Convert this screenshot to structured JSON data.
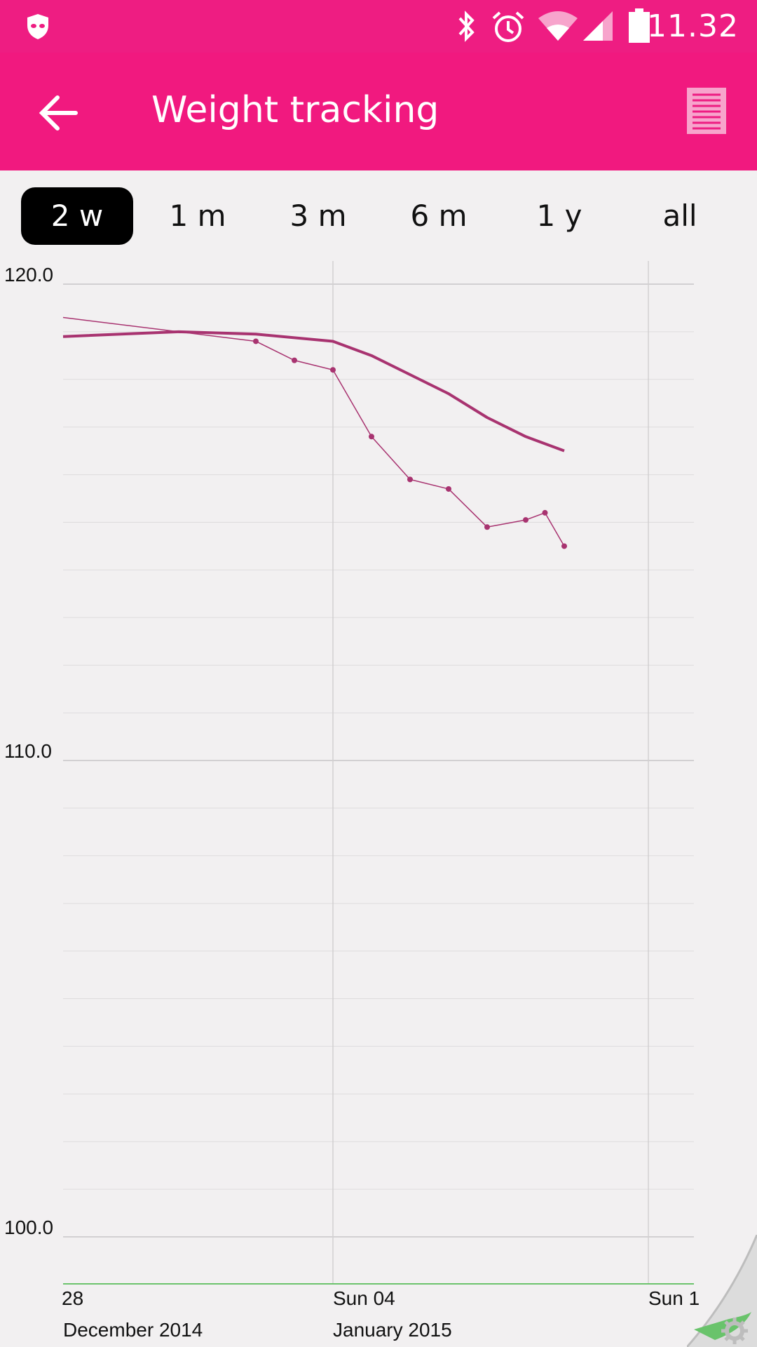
{
  "status_bar": {
    "time": "11.32",
    "icons": [
      "privacy-mask-icon",
      "bluetooth-icon",
      "alarm-icon",
      "wifi-icon",
      "cell-signal-icon",
      "battery-icon"
    ]
  },
  "app_bar": {
    "title": "Weight tracking",
    "back_icon": "arrow-back-icon",
    "list_icon": "list-icon"
  },
  "range_tabs": {
    "items": [
      {
        "label": "2 w",
        "active": true
      },
      {
        "label": "1 m",
        "active": false
      },
      {
        "label": "3 m",
        "active": false
      },
      {
        "label": "6 m",
        "active": false
      },
      {
        "label": "1 y",
        "active": false
      },
      {
        "label": "all",
        "active": false
      }
    ]
  },
  "colors": {
    "accent": "#ee1d82",
    "series": "#a83370",
    "background": "#f2f0f1",
    "baseline": "#6cc36c"
  },
  "chart_data": {
    "type": "line",
    "y_ticks": [
      "120.0",
      "110.0",
      "100.0"
    ],
    "ylim": [
      99,
      120.5
    ],
    "x_tick_labels": [
      {
        "day": "28",
        "month": "December 2014"
      },
      {
        "day": "Sun 04",
        "month": "January 2015"
      },
      {
        "day": "Sun 1",
        "month": ""
      }
    ],
    "xlim": [
      "2014-12-28",
      "2015-01-10"
    ],
    "grid": true,
    "series": [
      {
        "style": "trend",
        "points": [
          {
            "x": "2014-12-28",
            "y": 118.9
          },
          {
            "x": "2014-12-31",
            "y": 119.0
          },
          {
            "x": "2015-01-02",
            "y": 118.95
          },
          {
            "x": "2015-01-04",
            "y": 118.8
          },
          {
            "x": "2015-01-05",
            "y": 118.5
          },
          {
            "x": "2015-01-06",
            "y": 118.1
          },
          {
            "x": "2015-01-07",
            "y": 117.7
          },
          {
            "x": "2015-01-08",
            "y": 117.2
          },
          {
            "x": "2015-01-09",
            "y": 116.8
          },
          {
            "x": "2015-01-10",
            "y": 116.5
          }
        ]
      },
      {
        "style": "measured",
        "points": [
          {
            "x": "2014-12-28",
            "y": 119.3,
            "marker": false
          },
          {
            "x": "2015-01-02",
            "y": 118.8,
            "marker": true
          },
          {
            "x": "2015-01-03",
            "y": 118.4,
            "marker": true
          },
          {
            "x": "2015-01-04",
            "y": 118.2,
            "marker": true
          },
          {
            "x": "2015-01-05",
            "y": 116.8,
            "marker": true
          },
          {
            "x": "2015-01-06",
            "y": 115.9,
            "marker": true
          },
          {
            "x": "2015-01-07",
            "y": 115.7,
            "marker": true
          },
          {
            "x": "2015-01-08",
            "y": 114.9,
            "marker": true
          },
          {
            "x": "2015-01-09",
            "y": 115.05,
            "marker": true
          },
          {
            "x": "2015-01-09.5",
            "y": 115.2,
            "marker": true
          },
          {
            "x": "2015-01-10",
            "y": 114.5,
            "marker": true
          }
        ]
      }
    ]
  }
}
